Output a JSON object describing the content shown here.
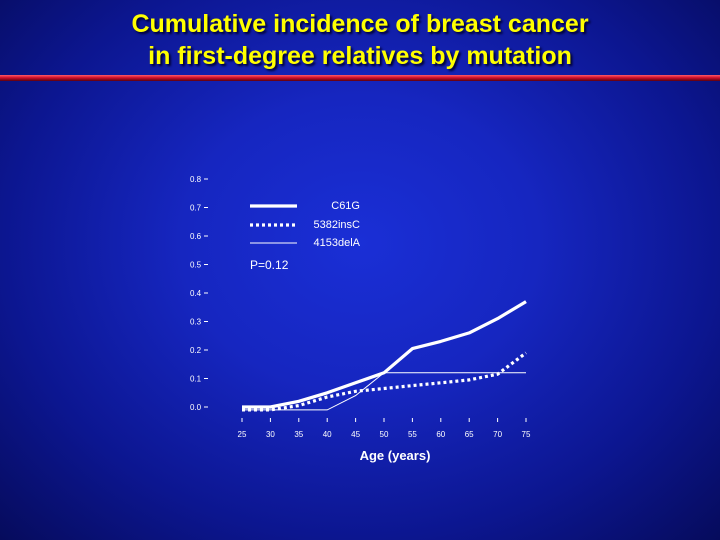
{
  "title_line1": "Cumulative incidence of breast cancer",
  "title_line2": "in first-degree relatives by mutation",
  "colors": {
    "title": "#ffff00",
    "rule": "#d0102a",
    "axis": "#ffffff",
    "series": "#ffffff"
  },
  "chart_data": {
    "type": "line",
    "xlabel": "Age (years)",
    "ylabel": "",
    "x": [
      25,
      30,
      35,
      40,
      45,
      50,
      55,
      60,
      65,
      70,
      75
    ],
    "xlim": [
      20,
      78
    ],
    "ylim": [
      0,
      0.8
    ],
    "yticks": [
      "0.0",
      "0.1",
      "0.2",
      "0.3",
      "0.4",
      "0.5",
      "0.6",
      "0.7",
      "0.8"
    ],
    "xticks": [
      "25",
      "30",
      "35",
      "40",
      "45",
      "50",
      "55",
      "60",
      "65",
      "70",
      "75"
    ],
    "annotation": "P=0.12",
    "legend_placement": "top-right",
    "grid": false,
    "series": [
      {
        "name": "C61G",
        "style": "thick-solid",
        "x": [
          25,
          30,
          35,
          40,
          45,
          50,
          55,
          60,
          65,
          70,
          75
        ],
        "values": [
          0.0,
          0.0,
          0.02,
          0.05,
          0.085,
          0.12,
          0.205,
          0.23,
          0.26,
          0.31,
          0.37
        ]
      },
      {
        "name": "5382insC",
        "style": "thick-dotted",
        "x": [
          25,
          30,
          35,
          40,
          45,
          50,
          55,
          60,
          65,
          70,
          75
        ],
        "values": [
          -0.01,
          -0.01,
          0.005,
          0.035,
          0.055,
          0.065,
          0.075,
          0.085,
          0.095,
          0.115,
          0.19
        ]
      },
      {
        "name": "4153delA",
        "style": "thin-solid",
        "x": [
          25,
          35,
          40,
          45,
          50,
          75
        ],
        "values": [
          -0.01,
          -0.01,
          -0.01,
          0.04,
          0.12,
          0.12
        ]
      }
    ]
  }
}
